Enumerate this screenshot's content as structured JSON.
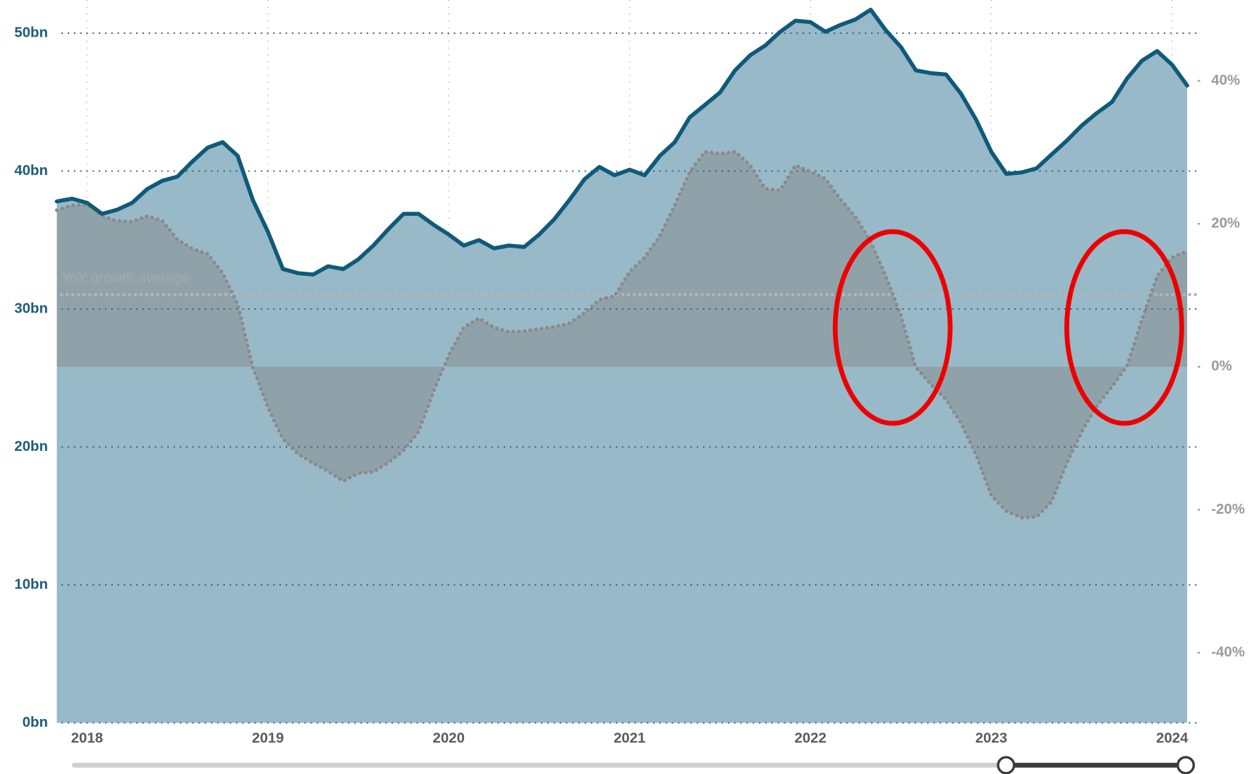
{
  "chart_data": {
    "type": "line",
    "x": [
      2017.833,
      2017.917,
      2018,
      2018.083,
      2018.167,
      2018.25,
      2018.333,
      2018.417,
      2018.5,
      2018.583,
      2018.667,
      2018.75,
      2018.833,
      2018.917,
      2019,
      2019.083,
      2019.167,
      2019.25,
      2019.333,
      2019.417,
      2019.5,
      2019.583,
      2019.667,
      2019.75,
      2019.833,
      2019.917,
      2020,
      2020.083,
      2020.167,
      2020.25,
      2020.333,
      2020.417,
      2020.5,
      2020.583,
      2020.667,
      2020.75,
      2020.833,
      2020.917,
      2021,
      2021.083,
      2021.167,
      2021.25,
      2021.333,
      2021.417,
      2021.5,
      2021.583,
      2021.667,
      2021.75,
      2021.833,
      2021.917,
      2022,
      2022.083,
      2022.167,
      2022.25,
      2022.333,
      2022.417,
      2022.5,
      2022.583,
      2022.667,
      2022.75,
      2022.833,
      2022.917,
      2023,
      2023.083,
      2023.167,
      2023.25,
      2023.333,
      2023.417,
      2023.5,
      2023.583,
      2023.667,
      2023.75,
      2023.833,
      2023.917,
      2024,
      2024.083
    ],
    "series": [
      {
        "color": "#0f5a7a",
        "fill": "#98b9c8",
        "values": [
          37.8,
          38.0,
          37.7,
          36.9,
          37.2,
          37.7,
          38.7,
          39.3,
          39.6,
          40.7,
          41.7,
          42.1,
          41.1,
          37.9,
          35.6,
          32.9,
          32.6,
          32.5,
          33.1,
          32.9,
          33.6,
          34.6,
          35.8,
          36.9,
          36.9,
          36.1,
          35.4,
          34.6,
          35.0,
          34.4,
          34.6,
          34.5,
          35.4,
          36.5,
          37.9,
          39.4,
          40.3,
          39.7,
          40.1,
          39.7,
          41.1,
          42.1,
          43.9,
          44.8,
          45.7,
          47.3,
          48.4,
          49.1,
          50.1,
          50.9,
          50.8,
          50.1,
          50.6,
          51.0,
          51.7,
          50.2,
          49.0,
          47.3,
          47.1,
          47.0,
          45.6,
          43.7,
          41.4,
          39.8,
          39.9,
          40.2,
          41.2,
          42.2,
          43.3,
          44.2,
          45.0,
          46.7,
          48.0,
          48.7,
          47.7,
          46.2
        ]
      },
      {
        "axis": "y2",
        "color": "#8a8a8a",
        "style": "dotted",
        "fill": "#8e9ea3",
        "values": [
          21.9,
          22.6,
          22.7,
          21.1,
          20.4,
          20.3,
          21.1,
          20.4,
          17.8,
          16.5,
          15.8,
          13.1,
          8.8,
          -0.1,
          -5.7,
          -10.1,
          -12.2,
          -13.5,
          -14.6,
          -16.0,
          -14.9,
          -14.7,
          -13.4,
          -11.7,
          -9.1,
          -3.4,
          1.6,
          5.5,
          6.8,
          5.5,
          4.9,
          5.0,
          5.3,
          5.6,
          6.1,
          7.5,
          9.4,
          9.9,
          13.3,
          15.3,
          18.3,
          22.6,
          27.3,
          30.1,
          29.8,
          30.1,
          28.2,
          24.9,
          24.7,
          28.2,
          27.3,
          26.3,
          23.4,
          20.9,
          17.5,
          12.7,
          7.2,
          -0.1,
          -2.5,
          -4.6,
          -7.9,
          -12.4,
          -18.0,
          -20.2,
          -21.1,
          -21.0,
          -18.9,
          -13.5,
          -9.1,
          -5.5,
          -2.8,
          0.1,
          6.6,
          12.7,
          15.3,
          16.2
        ]
      }
    ],
    "average": {
      "value": 10.1,
      "label": "YoY growth average"
    },
    "xlim": [
      2017.83,
      2024.15
    ],
    "xticks": [
      2018,
      2019,
      2020,
      2021,
      2022,
      2023,
      2024
    ],
    "ylim": [
      0,
      52.4
    ],
    "yticks": [
      {
        "value": 0,
        "label": "0bn"
      },
      {
        "value": 10,
        "label": "10bn"
      },
      {
        "value": 20,
        "label": "20bn"
      },
      {
        "value": 30,
        "label": "30bn"
      },
      {
        "value": 40,
        "label": "40bn"
      },
      {
        "value": 50,
        "label": "50bn"
      }
    ],
    "y2lim": [
      -49.8,
      51.3
    ],
    "y2ticks": [
      {
        "value": -40,
        "label": "-40%"
      },
      {
        "value": -20,
        "label": "-20%"
      },
      {
        "value": 0,
        "label": "0%"
      },
      {
        "value": 20,
        "label": "20%"
      },
      {
        "value": 40,
        "label": "40%"
      }
    ],
    "grid": true
  }
}
